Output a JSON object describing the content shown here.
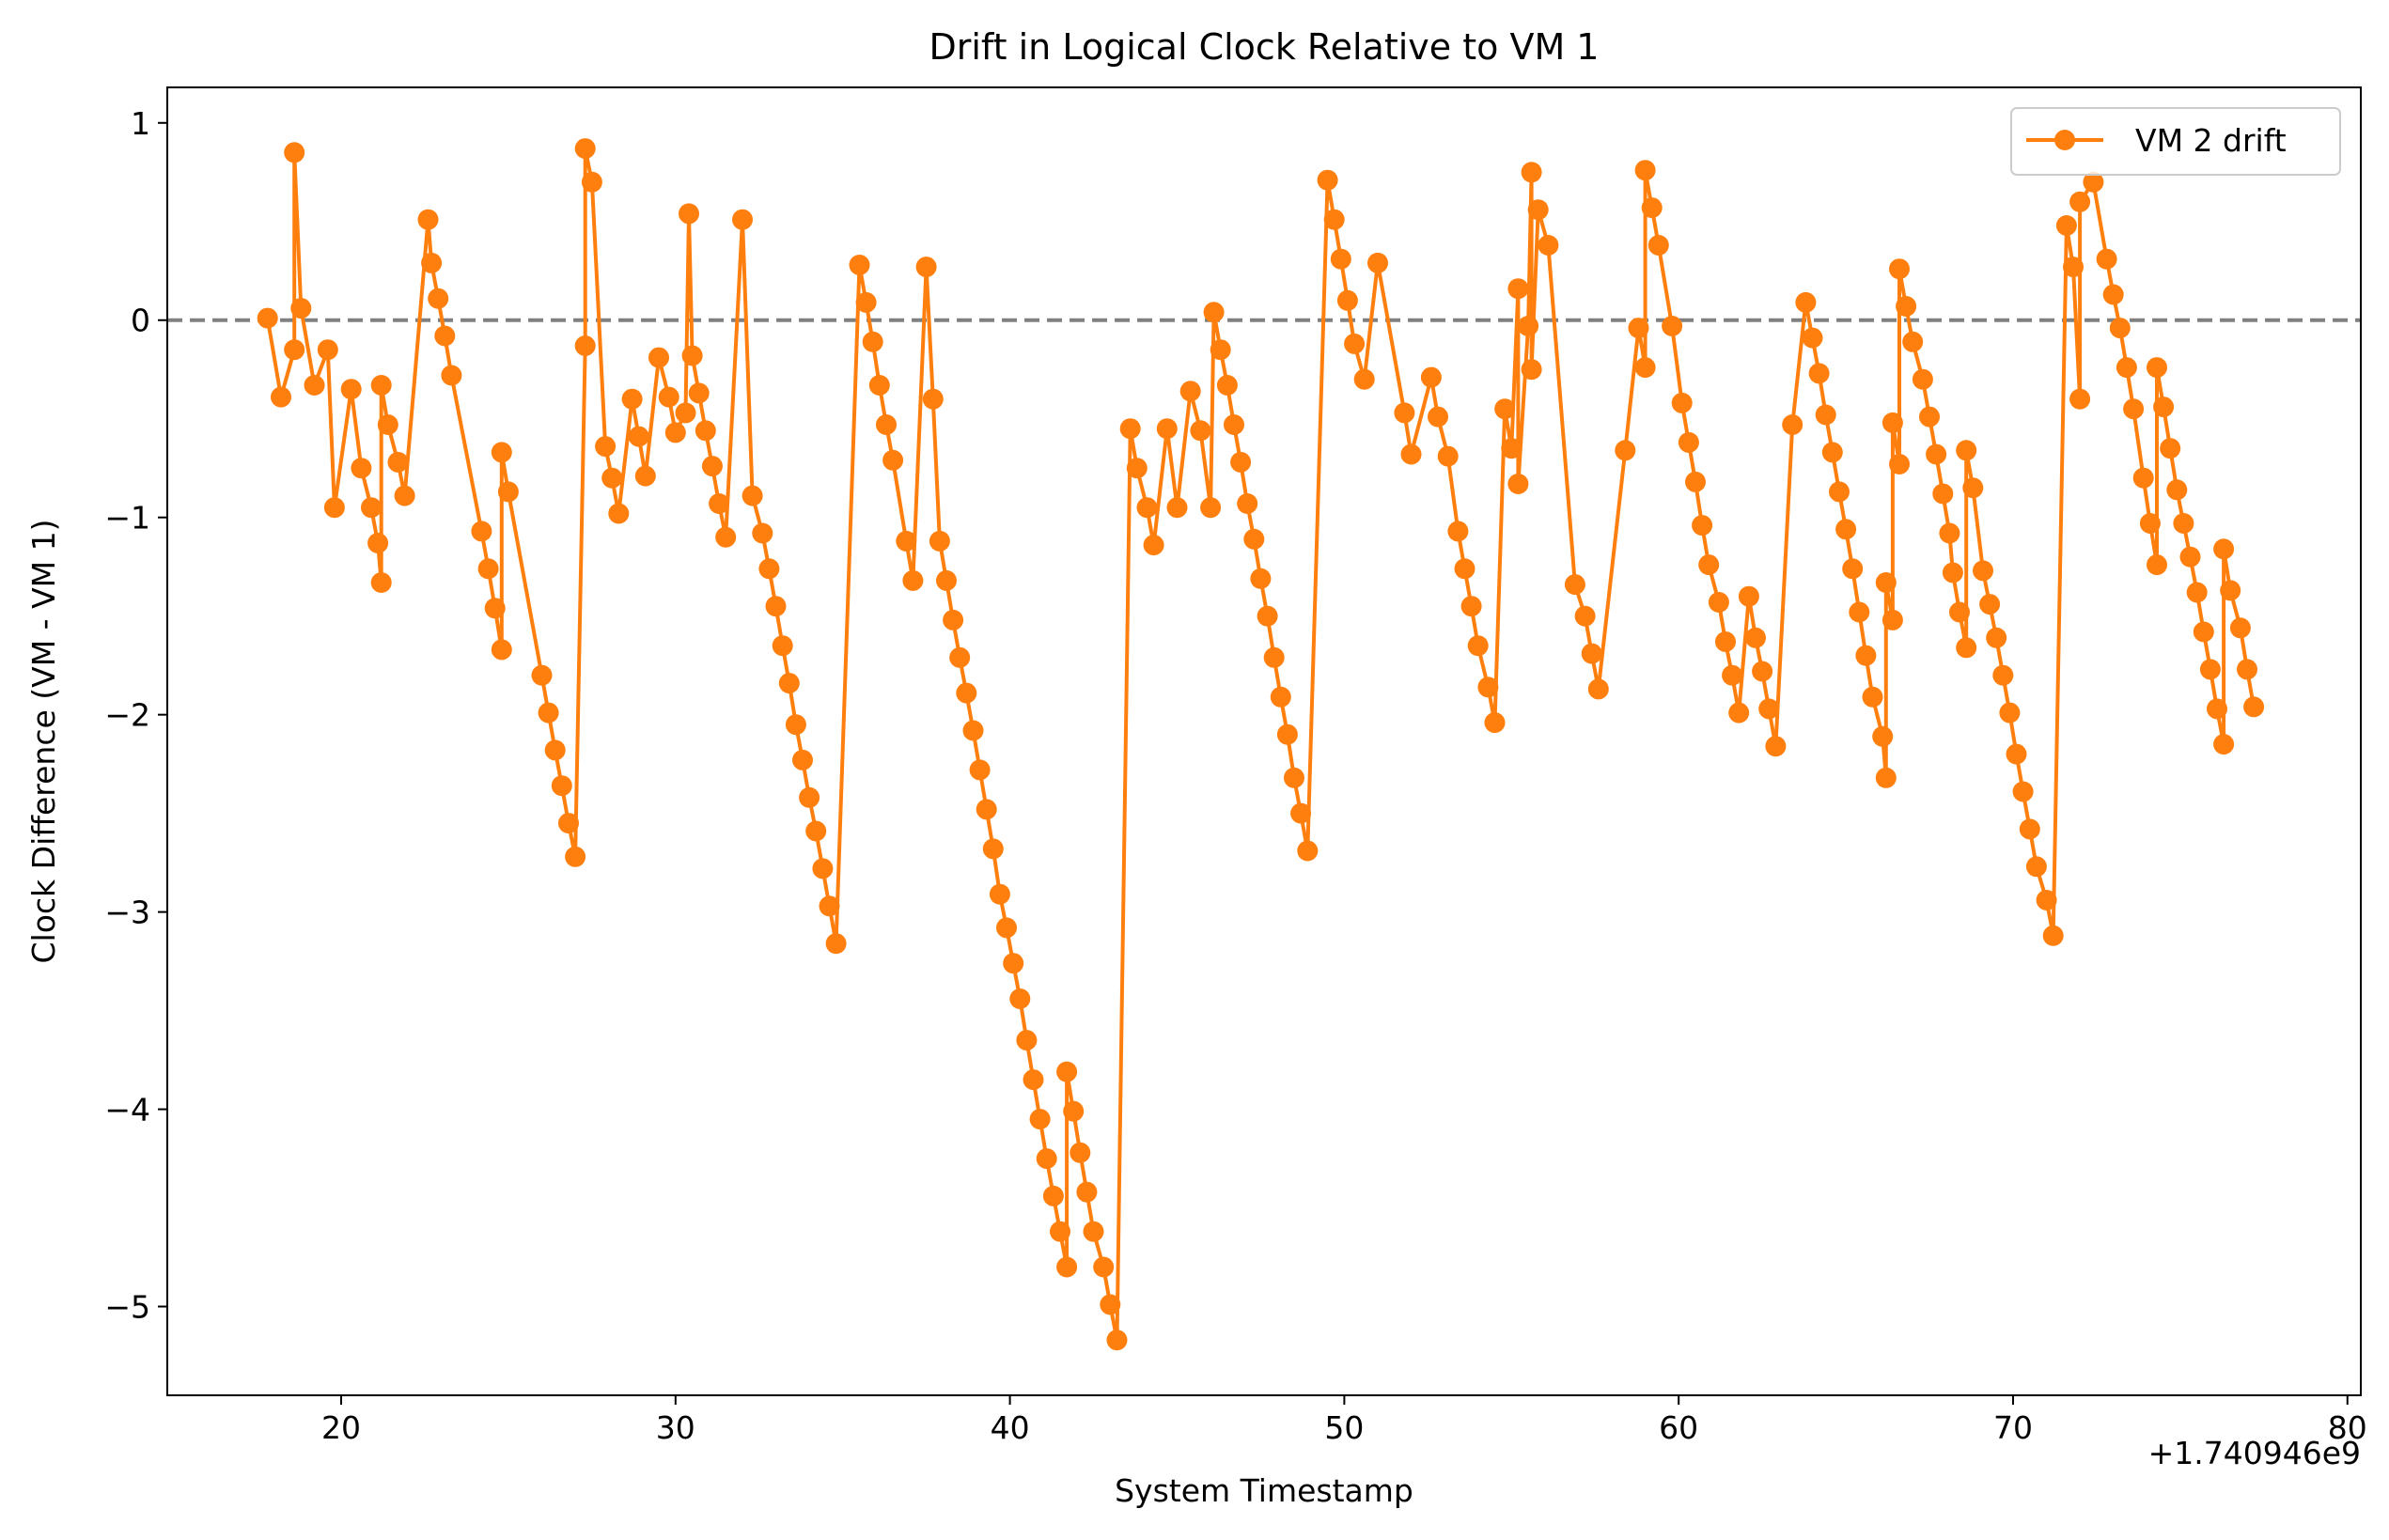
{
  "chart_data": {
    "type": "line",
    "title": "Drift in Logical Clock Relative to VM 1",
    "xlabel": "System Timestamp",
    "ylabel": "Clock Difference (VM - VM 1)",
    "x_offset_label": "+1.740946e9",
    "xlim": [
      14.8,
      80.4
    ],
    "ylim": [
      -5.45,
      1.18
    ],
    "x_ticks": [
      20,
      30,
      40,
      50,
      60,
      70,
      80
    ],
    "x_tick_labels": [
      "20",
      "30",
      "40",
      "50",
      "60",
      "70",
      "80"
    ],
    "y_ticks": [
      1,
      0,
      -1,
      -2,
      -3,
      -4,
      -5
    ],
    "y_tick_labels": [
      "1",
      "0",
      "−1",
      "−2",
      "−3",
      "−4",
      "−5"
    ],
    "grid": false,
    "legend_position": "top-right",
    "reference_line": {
      "y": 0,
      "style": "dashed",
      "color": "#808080"
    },
    "series": [
      {
        "name": "VM 2 drift",
        "color": "#ff7f0e",
        "marker": "circle",
        "points": [
          [
            17.8,
            0.01
          ],
          [
            18.2,
            -0.39
          ],
          [
            18.6,
            -0.15
          ],
          [
            18.6,
            0.85
          ],
          [
            18.8,
            0.06
          ],
          [
            19.2,
            -0.33
          ],
          [
            19.6,
            -0.15
          ],
          [
            19.8,
            -0.95
          ],
          [
            20.3,
            -0.35
          ],
          [
            20.6,
            -0.75
          ],
          [
            20.9,
            -0.95
          ],
          [
            21.1,
            -1.13
          ],
          [
            21.2,
            -1.33
          ],
          [
            21.2,
            -0.33
          ],
          [
            21.4,
            -0.53
          ],
          [
            21.7,
            -0.72
          ],
          [
            21.9,
            -0.89
          ],
          [
            22.6,
            0.51
          ],
          [
            22.7,
            0.29
          ],
          [
            22.9,
            0.11
          ],
          [
            23.1,
            -0.08
          ],
          [
            23.3,
            -0.28
          ],
          [
            24.2,
            -1.07
          ],
          [
            24.4,
            -1.26
          ],
          [
            24.6,
            -1.46
          ],
          [
            24.8,
            -1.67
          ],
          [
            24.8,
            -0.67
          ],
          [
            25.0,
            -0.87
          ],
          [
            26.0,
            -1.8
          ],
          [
            26.2,
            -1.99
          ],
          [
            26.4,
            -2.18
          ],
          [
            26.6,
            -2.36
          ],
          [
            26.8,
            -2.55
          ],
          [
            27.0,
            -2.72
          ],
          [
            27.3,
            -0.13
          ],
          [
            27.3,
            0.87
          ],
          [
            27.5,
            0.7
          ],
          [
            27.9,
            -0.64
          ],
          [
            28.1,
            -0.8
          ],
          [
            28.3,
            -0.98
          ],
          [
            28.7,
            -0.4
          ],
          [
            28.9,
            -0.59
          ],
          [
            29.1,
            -0.79
          ],
          [
            29.5,
            -0.19
          ],
          [
            29.8,
            -0.39
          ],
          [
            30.0,
            -0.57
          ],
          [
            30.3,
            -0.47
          ],
          [
            30.4,
            0.54
          ],
          [
            30.5,
            -0.18
          ],
          [
            30.7,
            -0.37
          ],
          [
            30.9,
            -0.56
          ],
          [
            31.1,
            -0.74
          ],
          [
            31.3,
            -0.93
          ],
          [
            31.5,
            -1.1
          ],
          [
            32.0,
            0.51
          ],
          [
            32.3,
            -0.89
          ],
          [
            32.6,
            -1.08
          ],
          [
            32.8,
            -1.26
          ],
          [
            33.0,
            -1.45
          ],
          [
            33.2,
            -1.65
          ],
          [
            33.4,
            -1.84
          ],
          [
            33.6,
            -2.05
          ],
          [
            33.8,
            -2.23
          ],
          [
            34.0,
            -2.42
          ],
          [
            34.2,
            -2.59
          ],
          [
            34.4,
            -2.78
          ],
          [
            34.6,
            -2.97
          ],
          [
            34.8,
            -3.16
          ],
          [
            35.5,
            0.28
          ],
          [
            35.7,
            0.09
          ],
          [
            35.9,
            -0.11
          ],
          [
            36.1,
            -0.33
          ],
          [
            36.3,
            -0.53
          ],
          [
            36.5,
            -0.71
          ],
          [
            36.9,
            -1.12
          ],
          [
            37.1,
            -1.32
          ],
          [
            37.5,
            0.27
          ],
          [
            37.7,
            -0.4
          ],
          [
            37.9,
            -1.12
          ],
          [
            38.1,
            -1.32
          ],
          [
            38.3,
            -1.52
          ],
          [
            38.5,
            -1.71
          ],
          [
            38.7,
            -1.89
          ],
          [
            38.9,
            -2.08
          ],
          [
            39.1,
            -2.28
          ],
          [
            39.3,
            -2.48
          ],
          [
            39.5,
            -2.68
          ],
          [
            39.7,
            -2.91
          ],
          [
            39.9,
            -3.08
          ],
          [
            40.1,
            -3.26
          ],
          [
            40.3,
            -3.44
          ],
          [
            40.5,
            -3.65
          ],
          [
            40.7,
            -3.85
          ],
          [
            40.9,
            -4.05
          ],
          [
            41.1,
            -4.25
          ],
          [
            41.3,
            -4.44
          ],
          [
            41.5,
            -4.62
          ],
          [
            41.7,
            -4.8
          ],
          [
            41.7,
            -3.81
          ],
          [
            41.9,
            -4.01
          ],
          [
            42.1,
            -4.22
          ],
          [
            42.3,
            -4.42
          ],
          [
            42.5,
            -4.62
          ],
          [
            42.8,
            -4.8
          ],
          [
            43.0,
            -4.99
          ],
          [
            43.2,
            -5.17
          ],
          [
            43.6,
            -0.55
          ],
          [
            43.8,
            -0.75
          ],
          [
            44.1,
            -0.95
          ],
          [
            44.3,
            -1.14
          ],
          [
            44.7,
            -0.55
          ],
          [
            45.0,
            -0.95
          ],
          [
            45.4,
            -0.36
          ],
          [
            45.7,
            -0.56
          ],
          [
            46.0,
            -0.95
          ],
          [
            46.1,
            0.04
          ],
          [
            46.3,
            -0.15
          ],
          [
            46.5,
            -0.33
          ],
          [
            46.7,
            -0.53
          ],
          [
            46.9,
            -0.72
          ],
          [
            47.1,
            -0.93
          ],
          [
            47.3,
            -1.11
          ],
          [
            47.5,
            -1.31
          ],
          [
            47.7,
            -1.5
          ],
          [
            47.9,
            -1.71
          ],
          [
            48.1,
            -1.91
          ],
          [
            48.3,
            -2.1
          ],
          [
            48.5,
            -2.32
          ],
          [
            48.7,
            -2.5
          ],
          [
            48.9,
            -2.69
          ],
          [
            49.5,
            0.71
          ],
          [
            49.7,
            0.51
          ],
          [
            49.9,
            0.31
          ],
          [
            50.1,
            0.1
          ],
          [
            50.3,
            -0.12
          ],
          [
            50.6,
            -0.3
          ],
          [
            51.0,
            0.29
          ],
          [
            51.8,
            -0.47
          ],
          [
            52.0,
            -0.68
          ],
          [
            52.6,
            -0.29
          ],
          [
            52.8,
            -0.49
          ],
          [
            53.1,
            -0.69
          ],
          [
            53.4,
            -1.07
          ],
          [
            53.6,
            -1.26
          ],
          [
            53.8,
            -1.45
          ],
          [
            54.0,
            -1.65
          ],
          [
            54.3,
            -1.86
          ],
          [
            54.5,
            -2.04
          ],
          [
            54.8,
            -0.45
          ],
          [
            55.0,
            -0.65
          ],
          [
            55.2,
            0.16
          ],
          [
            55.2,
            -0.83
          ],
          [
            55.5,
            -0.03
          ],
          [
            55.6,
            0.75
          ],
          [
            55.6,
            -0.25
          ],
          [
            55.8,
            0.56
          ],
          [
            56.1,
            0.38
          ],
          [
            56.9,
            -1.34
          ],
          [
            57.2,
            -1.5
          ],
          [
            57.4,
            -1.69
          ],
          [
            57.6,
            -1.87
          ],
          [
            58.4,
            -0.66
          ],
          [
            58.8,
            -0.04
          ],
          [
            59.0,
            -0.24
          ],
          [
            59.0,
            0.76
          ],
          [
            59.2,
            0.57
          ],
          [
            59.4,
            0.38
          ],
          [
            59.8,
            -0.03
          ],
          [
            60.1,
            -0.42
          ],
          [
            60.3,
            -0.62
          ],
          [
            60.5,
            -0.82
          ],
          [
            60.7,
            -1.04
          ],
          [
            60.9,
            -1.24
          ],
          [
            61.2,
            -1.43
          ],
          [
            61.4,
            -1.63
          ],
          [
            61.6,
            -1.8
          ],
          [
            61.8,
            -1.99
          ],
          [
            62.1,
            -1.4
          ],
          [
            62.3,
            -1.61
          ],
          [
            62.5,
            -1.78
          ],
          [
            62.7,
            -1.97
          ],
          [
            62.9,
            -2.16
          ],
          [
            63.4,
            -0.53
          ],
          [
            63.8,
            0.09
          ],
          [
            64.0,
            -0.09
          ],
          [
            64.2,
            -0.27
          ],
          [
            64.4,
            -0.48
          ],
          [
            64.6,
            -0.67
          ],
          [
            64.8,
            -0.87
          ],
          [
            65.0,
            -1.06
          ],
          [
            65.2,
            -1.26
          ],
          [
            65.4,
            -1.48
          ],
          [
            65.6,
            -1.7
          ],
          [
            65.8,
            -1.91
          ],
          [
            66.1,
            -2.11
          ],
          [
            66.2,
            -2.32
          ],
          [
            66.2,
            -1.33
          ],
          [
            66.4,
            -1.52
          ],
          [
            66.4,
            -0.52
          ],
          [
            66.6,
            -0.73
          ],
          [
            66.6,
            0.26
          ],
          [
            66.8,
            0.07
          ],
          [
            67.0,
            -0.11
          ],
          [
            67.3,
            -0.3
          ],
          [
            67.5,
            -0.49
          ],
          [
            67.7,
            -0.68
          ],
          [
            67.9,
            -0.88
          ],
          [
            68.1,
            -1.08
          ],
          [
            68.2,
            -1.28
          ],
          [
            68.4,
            -1.48
          ],
          [
            68.6,
            -1.66
          ],
          [
            68.6,
            -0.66
          ],
          [
            68.8,
            -0.85
          ],
          [
            69.1,
            -1.27
          ],
          [
            69.3,
            -1.44
          ],
          [
            69.5,
            -1.61
          ],
          [
            69.7,
            -1.8
          ],
          [
            69.9,
            -1.99
          ],
          [
            70.1,
            -2.2
          ],
          [
            70.3,
            -2.39
          ],
          [
            70.5,
            -2.58
          ],
          [
            70.7,
            -2.77
          ],
          [
            71.0,
            -2.94
          ],
          [
            71.2,
            -3.12
          ],
          [
            71.6,
            0.48
          ],
          [
            71.8,
            0.27
          ],
          [
            72.0,
            -0.4
          ],
          [
            72.0,
            0.6
          ],
          [
            72.4,
            0.7
          ],
          [
            72.8,
            0.31
          ],
          [
            73.0,
            0.13
          ],
          [
            73.2,
            -0.04
          ],
          [
            73.4,
            -0.24
          ],
          [
            73.6,
            -0.45
          ],
          [
            73.9,
            -0.8
          ],
          [
            74.1,
            -1.03
          ],
          [
            74.3,
            -1.24
          ],
          [
            74.3,
            -0.24
          ],
          [
            74.5,
            -0.44
          ],
          [
            74.7,
            -0.65
          ],
          [
            74.9,
            -0.86
          ],
          [
            75.1,
            -1.03
          ],
          [
            75.3,
            -1.2
          ],
          [
            75.5,
            -1.38
          ],
          [
            75.7,
            -1.58
          ],
          [
            75.9,
            -1.77
          ],
          [
            76.1,
            -1.97
          ],
          [
            76.3,
            -2.15
          ],
          [
            76.3,
            -1.16
          ],
          [
            76.5,
            -1.37
          ],
          [
            76.8,
            -1.56
          ],
          [
            77.0,
            -1.77
          ],
          [
            77.2,
            -1.96
          ]
        ]
      }
    ]
  }
}
